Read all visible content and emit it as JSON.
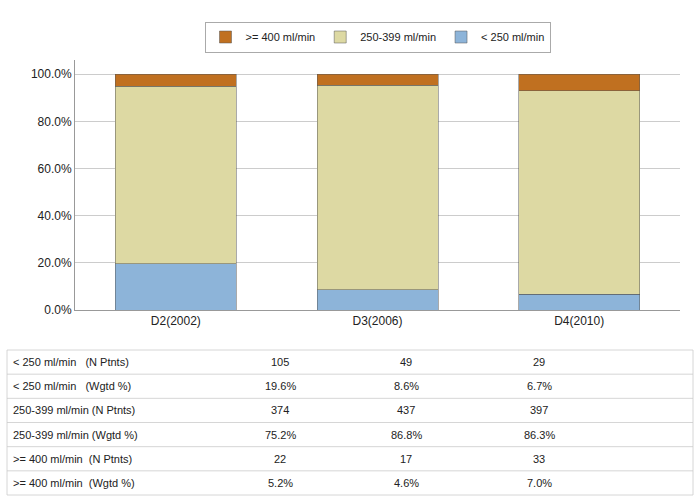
{
  "chart_data": {
    "type": "bar",
    "stacked": true,
    "categories": [
      "D2(2002)",
      "D3(2006)",
      "D4(2010)"
    ],
    "series": [
      {
        "name": "< 250 ml/min",
        "color": "#8db4d9",
        "values": [
          19.6,
          8.6,
          6.7
        ]
      },
      {
        "name": "250-399 ml/min",
        "color": "#ddd9a3",
        "values": [
          75.2,
          86.8,
          86.3
        ]
      },
      {
        "name": ">= 400 ml/min",
        "color": "#c07020",
        "values": [
          5.2,
          4.6,
          7.0
        ]
      }
    ],
    "ylim": [
      0,
      106
    ],
    "yticks": [
      {
        "value": 0,
        "label": "0.0%"
      },
      {
        "value": 20,
        "label": "20.0%"
      },
      {
        "value": 40,
        "label": "40.0%"
      },
      {
        "value": 60,
        "label": "60.0%"
      },
      {
        "value": 80,
        "label": "80.0%"
      },
      {
        "value": 100,
        "label": "100.0%"
      }
    ],
    "grid": true,
    "legend": "top",
    "table": [
      [
        "< 250 ml/min   (N Ptnts)",
        "105",
        "49",
        "29"
      ],
      [
        "< 250 ml/min   (Wgtd %)",
        "19.6%",
        "8.6%",
        "6.7%"
      ],
      [
        "250-399 ml/min (N Ptnts)",
        "374",
        "437",
        "397"
      ],
      [
        "250-399 ml/min (Wgtd %)",
        "75.2%",
        "86.8%",
        "86.3%"
      ],
      [
        ">= 400 ml/min  (N Ptnts)",
        "22",
        "17",
        "33"
      ],
      [
        ">= 400 ml/min  (Wgtd %)",
        "5.2%",
        "4.6%",
        "7.0%"
      ]
    ]
  }
}
